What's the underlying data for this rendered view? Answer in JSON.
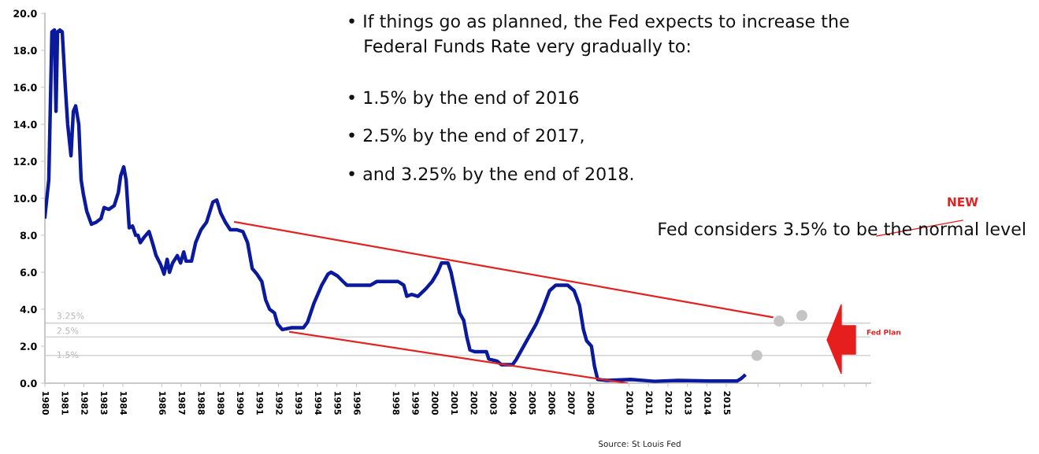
{
  "chart_data": {
    "type": "line",
    "x": [
      1980.0,
      1980.2,
      1980.36,
      1980.49,
      1980.57,
      1980.65,
      1980.77,
      1980.89,
      1981.05,
      1981.17,
      1981.34,
      1981.46,
      1981.58,
      1981.74,
      1981.86,
      1981.98,
      1982.15,
      1982.39,
      1982.63,
      1982.88,
      1983.04,
      1983.28,
      1983.56,
      1983.77,
      1983.89,
      1984.05,
      1984.17,
      1984.33,
      1984.5,
      1984.66,
      1984.78,
      1984.9,
      1985.1,
      1985.35,
      1985.55,
      1985.71,
      1985.95,
      1986.12,
      1986.28,
      1986.4,
      1986.56,
      1986.8,
      1986.97,
      1987.13,
      1987.25,
      1987.53,
      1987.74,
      1988.02,
      1988.3,
      1988.63,
      1988.83,
      1989.03,
      1989.27,
      1989.52,
      1989.84,
      1990.17,
      1990.41,
      1990.65,
      1990.89,
      1991.14,
      1991.34,
      1991.54,
      1991.79,
      1991.95,
      1992.19,
      1992.68,
      1993.28,
      1993.49,
      1993.81,
      1994.22,
      1994.54,
      1994.7,
      1995.03,
      1995.31,
      1995.51,
      1995.92,
      1996.73,
      1997.05,
      1997.54,
      1998.14,
      1998.43,
      1998.59,
      1998.83,
      1999.16,
      1999.56,
      1999.89,
      2000.17,
      2000.37,
      2000.7,
      2000.86,
      2001.1,
      2001.3,
      2001.51,
      2001.67,
      2001.83,
      2002.07,
      2002.32,
      2002.68,
      2002.8,
      2003.21,
      2003.45,
      2004.02,
      2004.22,
      2004.75,
      2005.23,
      2005.56,
      2005.92,
      2006.24,
      2006.85,
      2007.18,
      2007.46,
      2007.66,
      2007.82,
      2008.07,
      2008.23,
      2008.39,
      2008.88,
      2010.09,
      2011.31,
      2012.52,
      2014.14,
      2015.56,
      2015.76,
      2015.92
    ],
    "series": [
      {
        "color": "#0b1a9c",
        "values": [
          9.0,
          11.0,
          19.0,
          19.1,
          14.7,
          19.0,
          19.1,
          19.0,
          16.0,
          14.0,
          12.3,
          14.7,
          15.0,
          14.0,
          11.0,
          10.2,
          9.3,
          8.6,
          8.7,
          8.9,
          9.5,
          9.4,
          9.6,
          10.3,
          11.2,
          11.7,
          11.0,
          8.4,
          8.5,
          8.0,
          8.0,
          7.6,
          7.9,
          8.2,
          7.5,
          6.9,
          6.4,
          5.9,
          6.7,
          6.0,
          6.5,
          6.9,
          6.5,
          7.1,
          6.6,
          6.6,
          7.6,
          8.3,
          8.7,
          9.8,
          9.9,
          9.2,
          8.7,
          8.3,
          8.3,
          8.2,
          7.6,
          6.2,
          5.9,
          5.5,
          4.5,
          4.0,
          3.8,
          3.2,
          2.9,
          3.0,
          3.0,
          3.3,
          4.3,
          5.3,
          5.9,
          6.0,
          5.8,
          5.5,
          5.3,
          5.3,
          5.3,
          5.5,
          5.5,
          5.5,
          5.3,
          4.7,
          4.8,
          4.7,
          5.1,
          5.5,
          6.0,
          6.5,
          6.5,
          6.0,
          4.8,
          3.8,
          3.4,
          2.5,
          1.8,
          1.7,
          1.7,
          1.7,
          1.3,
          1.2,
          1.0,
          1.0,
          1.3,
          2.3,
          3.2,
          4.0,
          5.0,
          5.3,
          5.3,
          5.0,
          4.2,
          2.9,
          2.3,
          2.0,
          0.9,
          0.2,
          0.15,
          0.2,
          0.1,
          0.15,
          0.12,
          0.12,
          0.25,
          0.4
        ]
      },
      {
        "color": "#e02424",
        "x": [
          1989.76,
          2017.37
        ],
        "values": [
          8.72,
          3.57
        ]
      },
      {
        "color": "#e02424",
        "x": [
          1992.59,
          2009.9
        ],
        "values": [
          2.77,
          0.0
        ]
      },
      {
        "type": "scatter",
        "marker": "circle",
        "color": "#c4c4c4",
        "x": [
          2016.57,
          2017.71,
          2018.88
        ],
        "values": [
          1.5,
          3.36,
          3.66
        ]
      }
    ],
    "xlim": [
      1980,
      2022.4
    ],
    "ylim": [
      0,
      20
    ],
    "xticks": [
      1980,
      1981,
      1982,
      1983,
      1984,
      1986,
      1987,
      1988,
      1989,
      1990,
      1991,
      1992,
      1993,
      1994,
      1995,
      1996,
      1998,
      1999,
      2000,
      2001,
      2002,
      2003,
      2004,
      2005,
      2006,
      2007,
      2008,
      2010,
      2011,
      2012,
      2013,
      2014,
      2015,
      {
        "value": 2016.63,
        "label": null
      },
      {
        "value": 2017.74,
        "label": null
      },
      {
        "value": 2018.85,
        "label": null
      },
      {
        "value": 2019.96,
        "label": null
      },
      {
        "value": 2021.07,
        "label": null
      },
      {
        "value": 2022.18,
        "label": null
      }
    ],
    "yticks": [
      {
        "value": 0,
        "label": "0.0"
      },
      {
        "value": 2,
        "label": "2.0"
      },
      {
        "value": 4,
        "label": "4.0"
      },
      {
        "value": 6,
        "label": "6.0"
      },
      {
        "value": 8,
        "label": "8.0"
      },
      {
        "value": 10,
        "label": "10.0"
      },
      {
        "value": 12,
        "label": "12.0"
      },
      {
        "value": 14,
        "label": "14.0"
      },
      {
        "value": 16,
        "label": "16.0"
      },
      {
        "value": 18,
        "label": "18.0"
      },
      {
        "value": 20,
        "label": "20.0"
      }
    ],
    "ref_lines": [
      {
        "axis": "y",
        "value": 3.25,
        "label": "3.25%",
        "color": "#d4d4d4"
      },
      {
        "axis": "y",
        "value": 2.5,
        "label": "2.5%",
        "color": "#d4d4d4"
      },
      {
        "axis": "y",
        "value": 1.5,
        "label": "1.5%",
        "color": "#d4d4d4"
      }
    ],
    "annotations": [
      "• If things go as planned, the Fed expects to increase the\n   Federal Funds Rate very gradually to:",
      "• 1.5% by the end of 2016",
      "• 2.5% by the end of 2017,",
      "• and 3.25% by the end of 2018.",
      "Fed considers 3.5% to be the normal level",
      "NEW",
      "Fed Plan",
      "Source: St Louis Fed"
    ],
    "grid": false,
    "legend": false,
    "line_style": "solid"
  }
}
